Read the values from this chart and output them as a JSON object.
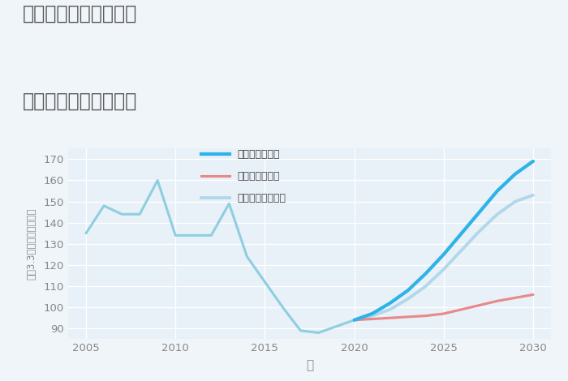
{
  "title_line1": "兵庫県姫路市御立東の",
  "title_line2": "中古戸建ての価格推移",
  "xlabel": "年",
  "ylabel": "坪（3.3㎡）単価（万円）",
  "xlim": [
    2004,
    2031
  ],
  "ylim": [
    85,
    175
  ],
  "yticks": [
    90,
    100,
    110,
    120,
    130,
    140,
    150,
    160,
    170
  ],
  "xticks": [
    2005,
    2010,
    2015,
    2020,
    2025,
    2030
  ],
  "bg_color": "#f0f5f9",
  "plot_bg_color": "#e8f0f8",
  "grid_color": "#ffffff",
  "historical_x": [
    2005,
    2006,
    2007,
    2008,
    2009,
    2010,
    2011,
    2012,
    2013,
    2014,
    2015,
    2016,
    2017,
    2018,
    2019,
    2020
  ],
  "historical_y": [
    135,
    148,
    144,
    144,
    160,
    134,
    134,
    134,
    149,
    124,
    112,
    100,
    89,
    88,
    91,
    94
  ],
  "forecast_x": [
    2020,
    2021,
    2022,
    2023,
    2024,
    2025,
    2026,
    2027,
    2028,
    2029,
    2030
  ],
  "good_y": [
    94,
    97,
    102,
    108,
    116,
    125,
    135,
    145,
    155,
    163,
    169
  ],
  "bad_y": [
    94,
    94.5,
    95,
    95.5,
    96,
    97,
    99,
    101,
    103,
    104.5,
    106
  ],
  "normal_y": [
    94,
    96,
    99,
    104,
    110,
    118,
    127,
    136,
    144,
    150,
    153
  ],
  "color_historical": "#8ecfdf",
  "color_good": "#2db3e8",
  "color_bad": "#e88888",
  "color_normal": "#b0d8ea",
  "label_good": "グッドシナリオ",
  "label_bad": "バッドシナリオ",
  "label_normal": "ノーマルシナリオ",
  "line_width": 2.2,
  "title_color": "#555555",
  "axis_color": "#888888",
  "tick_color": "#888888"
}
